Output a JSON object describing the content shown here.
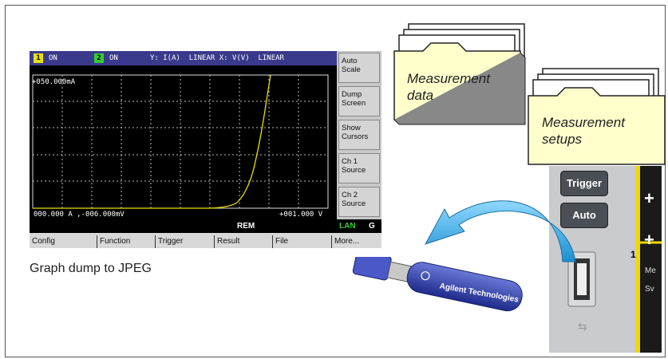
{
  "screen": {
    "status": {
      "ch1_num": "1",
      "ch1_state": "ON",
      "ch2_num": "2",
      "ch2_state": "ON",
      "axes": "Y: I(A)  LINEAR X: V(V)  LINEAR"
    },
    "y_top_label": "+050.000mA",
    "x_left_label": "000.000 A ,-006.000mV",
    "x_right_label": "+001.000 V",
    "softkeys": [
      {
        "line1": "Auto",
        "line2": "Scale"
      },
      {
        "line1": "Dump",
        "line2": "Screen"
      },
      {
        "line1": "Show",
        "line2": "Cursors"
      },
      {
        "line1": "Ch 1",
        "line2": "Source"
      },
      {
        "line1": "Ch 2",
        "line2": "Source"
      }
    ],
    "rem": "REM",
    "lan": "LAN",
    "g": "G",
    "function_keys": [
      "Config",
      "Function",
      "Trigger",
      "Result",
      "File",
      "More..."
    ],
    "colors": {
      "trace": "#e8e000",
      "ch1_badge": "#e8e000",
      "ch2_badge": "#33cc33",
      "status_bg": "#3a3a8c",
      "lan": "#33cc33"
    }
  },
  "caption": "Graph dump to JPEG",
  "folders": {
    "data_line1": "Measurement",
    "data_line2": "data",
    "setups_line1": "Measurement",
    "setups_line2": "setups"
  },
  "device": {
    "trigger": "Trigger",
    "auto": "Auto",
    "channel_num": "1",
    "side_text_1": "Me",
    "side_text_2": "Sv"
  },
  "usb_stick": {
    "brand": "Agilent Technologies"
  }
}
